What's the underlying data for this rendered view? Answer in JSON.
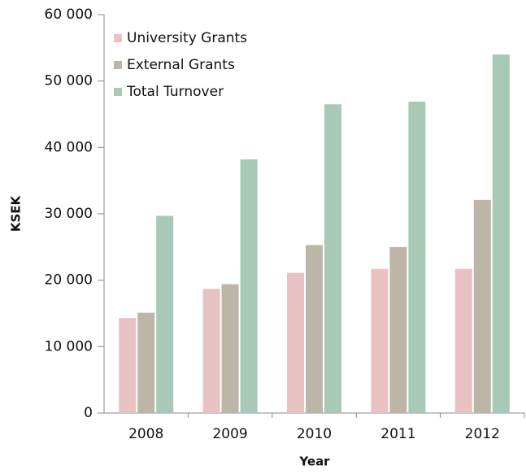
{
  "chart_data": {
    "type": "bar",
    "xlabel": "Year",
    "ylabel": "KSEK",
    "categories": [
      "2008",
      "2009",
      "2010",
      "2011",
      "2012"
    ],
    "series": [
      {
        "name": "University Grants",
        "color": "#e8c1c3",
        "values": [
          14300,
          18700,
          21100,
          21700,
          21700
        ]
      },
      {
        "name": "External Grants",
        "color": "#bdb5a8",
        "values": [
          15100,
          19400,
          25300,
          25000,
          32100
        ]
      },
      {
        "name": "Total Turnover",
        "color": "#a8c9b5",
        "values": [
          29700,
          38200,
          46500,
          46900,
          54000
        ]
      }
    ],
    "ylim": [
      0,
      60000
    ],
    "yticks": [
      0,
      {
        "value": 10000,
        "label": "10 000"
      },
      {
        "value": 20000,
        "label": "20 000"
      },
      {
        "value": 30000,
        "label": "30 000"
      },
      {
        "value": 40000,
        "label": "40 000"
      },
      {
        "value": 50000,
        "label": "50 000"
      },
      {
        "value": 60000,
        "label": "60 000"
      }
    ],
    "legend": "upper left",
    "grid": false
  }
}
